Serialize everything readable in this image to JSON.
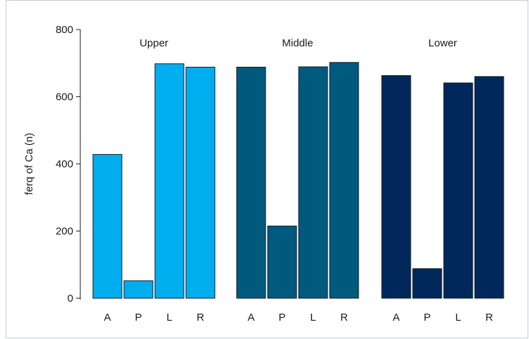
{
  "chart_data": {
    "type": "bar",
    "title": "",
    "xlabel": "",
    "ylabel": "ferq of Ca (n)",
    "ylim": [
      0,
      800
    ],
    "yticks": [
      0,
      200,
      400,
      600,
      800
    ],
    "categories": [
      "A",
      "P",
      "L",
      "R"
    ],
    "grid": false,
    "series": [
      {
        "name": "Upper",
        "color": "#00aeef",
        "values": [
          428,
          52,
          698,
          688
        ]
      },
      {
        "name": "Middle",
        "color": "#005a7d",
        "values": [
          688,
          215,
          689,
          702
        ]
      },
      {
        "name": "Lower",
        "color": "#00285a",
        "values": [
          663,
          88,
          641,
          660
        ]
      }
    ]
  }
}
